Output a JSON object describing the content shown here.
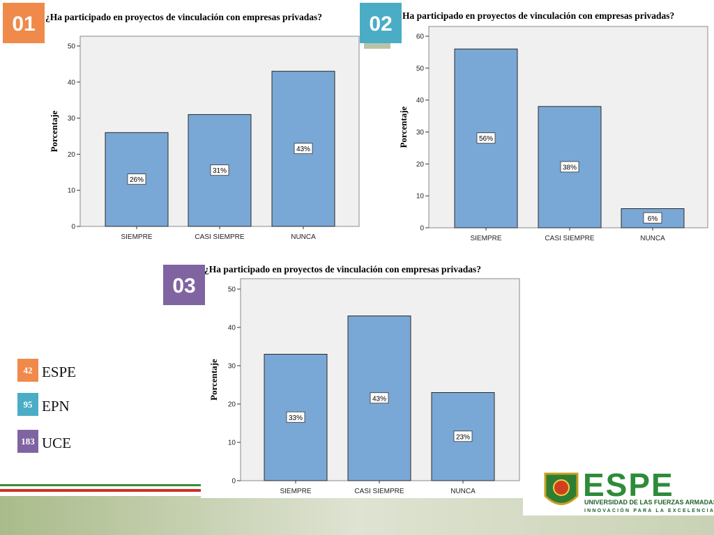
{
  "chart_data": [
    {
      "type": "bar",
      "title": "¿Ha participado en proyectos de vinculación con empresas privadas?",
      "y_label": "Porcentaje",
      "categories": [
        "SIEMPRE",
        "CASI SIEMPRE",
        "NUNCA"
      ],
      "values": [
        26,
        31,
        43
      ],
      "value_labels": [
        "26%",
        "31%",
        "43%"
      ],
      "color": "#79a8d6",
      "ylim": [
        0,
        50
      ],
      "yticks": [
        0,
        10,
        20,
        30,
        40,
        50
      ]
    },
    {
      "type": "bar",
      "title": "Ha participado en proyectos de vinculación con empresas privadas?",
      "y_label": "Porcentaje",
      "categories": [
        "SIEMPRE",
        "CASI SIEMPRE",
        "NUNCA"
      ],
      "values": [
        56,
        38,
        6
      ],
      "value_labels": [
        "56%",
        "38%",
        "6%"
      ],
      "color": "#79a8d6",
      "ylim": [
        0,
        60
      ],
      "yticks": [
        0,
        10,
        20,
        30,
        40,
        50,
        60
      ]
    },
    {
      "type": "bar",
      "title": "¿Ha participado en proyectos de vinculación con empresas privadas?",
      "y_label": "Porcentaje",
      "categories": [
        "SIEMPRE",
        "CASI SIEMPRE",
        "NUNCA"
      ],
      "values": [
        33,
        43,
        23
      ],
      "value_labels": [
        "33%",
        "43%",
        "23%"
      ],
      "color": "#79a8d6",
      "ylim": [
        0,
        50
      ],
      "yticks": [
        0,
        10,
        20,
        30,
        40,
        50
      ]
    }
  ],
  "badges": [
    "01",
    "02",
    "03"
  ],
  "legend": [
    {
      "count": 42,
      "name": "ESPE"
    },
    {
      "count": 95,
      "name": "EPN"
    },
    {
      "count": 183,
      "name": "UCE"
    }
  ],
  "logo": {
    "name": "ESPE",
    "subtitle": "UNIVERSIDAD DE LAS FUERZAS ARMADAS",
    "motto": "INNOVACIÓN PARA LA EXCELENCIA"
  }
}
